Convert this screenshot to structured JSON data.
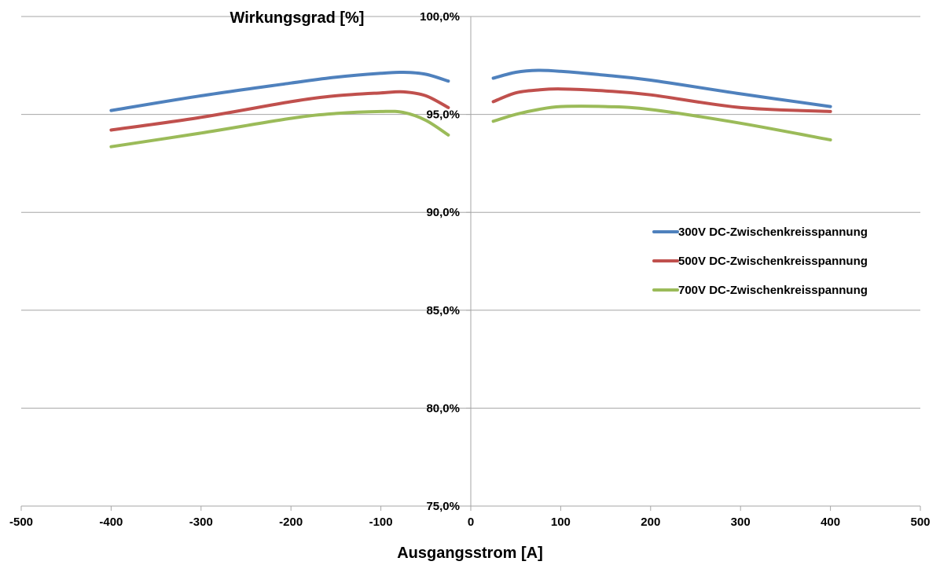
{
  "chart_data": {
    "type": "line",
    "xlabel": "Ausgangsstrom [A]",
    "ylabel": "Wirkungsgrad [%]",
    "xlim": [
      -500,
      500
    ],
    "ylim": [
      75,
      100
    ],
    "x_ticks": [
      -500,
      -400,
      -300,
      -200,
      -100,
      0,
      100,
      200,
      300,
      400,
      500
    ],
    "x_tick_labels": [
      "-500",
      "-400",
      "-300",
      "-200",
      "-100",
      "0",
      "100",
      "200",
      "300",
      "400",
      "500"
    ],
    "y_ticks": [
      75,
      80,
      85,
      90,
      95,
      100
    ],
    "y_tick_labels": [
      "75,0%",
      "80,0%",
      "85,0%",
      "90,0%",
      "95,0%",
      "100,0%"
    ],
    "grid": "horizontal",
    "legend_position": "right",
    "series": [
      {
        "name": "300V DC-Zwischenkreisspannung",
        "color": "#4f81bd",
        "segments": [
          [
            [
              -400,
              95.2
            ],
            [
              -300,
              95.95
            ],
            [
              -200,
              96.6
            ],
            [
              -150,
              96.9
            ],
            [
              -100,
              97.1
            ],
            [
              -75,
              97.15
            ],
            [
              -50,
              97.05
            ],
            [
              -25,
              96.7
            ]
          ],
          [
            [
              25,
              96.85
            ],
            [
              50,
              97.15
            ],
            [
              75,
              97.25
            ],
            [
              100,
              97.2
            ],
            [
              150,
              97.0
            ],
            [
              200,
              96.75
            ],
            [
              300,
              96.05
            ],
            [
              400,
              95.4
            ]
          ]
        ]
      },
      {
        "name": "500V DC-Zwischenkreisspannung",
        "color": "#c0504d",
        "segments": [
          [
            [
              -400,
              94.2
            ],
            [
              -300,
              94.85
            ],
            [
              -200,
              95.65
            ],
            [
              -150,
              95.95
            ],
            [
              -100,
              96.1
            ],
            [
              -75,
              96.15
            ],
            [
              -50,
              95.95
            ],
            [
              -25,
              95.35
            ]
          ],
          [
            [
              25,
              95.65
            ],
            [
              50,
              96.1
            ],
            [
              75,
              96.25
            ],
            [
              100,
              96.3
            ],
            [
              150,
              96.2
            ],
            [
              200,
              96.0
            ],
            [
              300,
              95.35
            ],
            [
              400,
              95.15
            ]
          ]
        ]
      },
      {
        "name": "700V DC-Zwischenkreisspannung",
        "color": "#9bbb59",
        "segments": [
          [
            [
              -400,
              93.35
            ],
            [
              -300,
              94.05
            ],
            [
              -200,
              94.8
            ],
            [
              -150,
              95.05
            ],
            [
              -100,
              95.15
            ],
            [
              -75,
              95.1
            ],
            [
              -50,
              94.7
            ],
            [
              -25,
              93.95
            ]
          ],
          [
            [
              25,
              94.65
            ],
            [
              50,
              95.0
            ],
            [
              75,
              95.25
            ],
            [
              100,
              95.4
            ],
            [
              150,
              95.4
            ],
            [
              200,
              95.25
            ],
            [
              300,
              94.55
            ],
            [
              400,
              93.7
            ]
          ]
        ]
      }
    ]
  }
}
